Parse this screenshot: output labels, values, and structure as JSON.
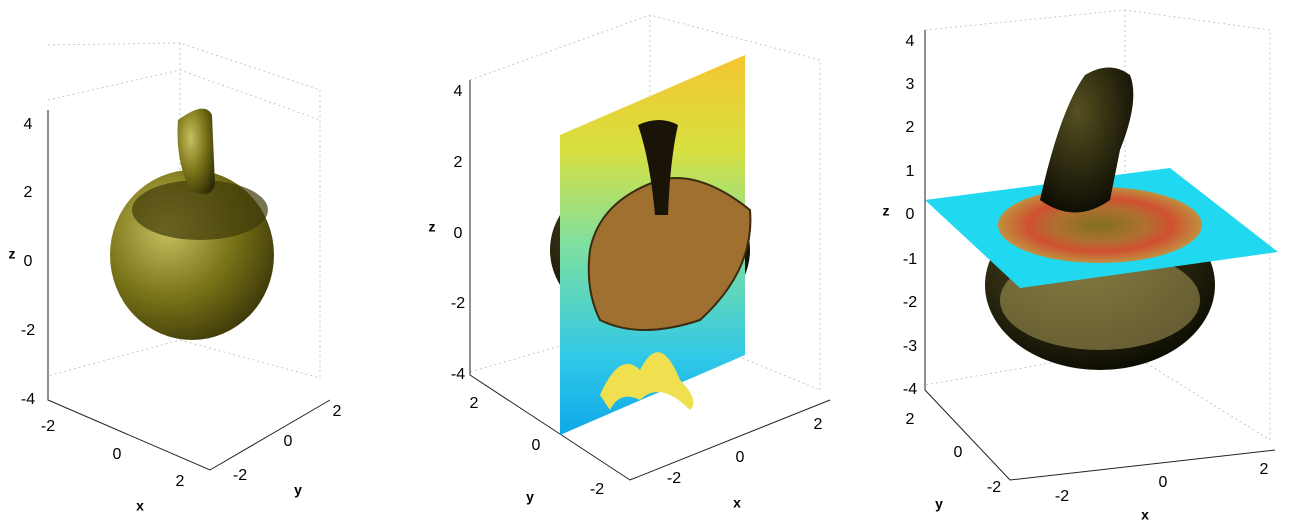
{
  "panels": [
    {
      "zticks": [
        4,
        2,
        0,
        -2,
        -4
      ],
      "xticks": [
        -2,
        0,
        2
      ],
      "yticks": [
        2,
        0,
        -2
      ],
      "zlabel": "z",
      "xlabel": "x",
      "ylabel": "y"
    },
    {
      "zticks": [
        4,
        2,
        0,
        -2,
        -4
      ],
      "yticks": [
        2,
        0,
        -2
      ],
      "xticks": [
        -2,
        0,
        2
      ],
      "zlabel": "z",
      "ylabel": "y",
      "xlabel": "x"
    },
    {
      "zticks": [
        4,
        3,
        2,
        1,
        0,
        -1,
        -2,
        -3,
        -4
      ],
      "yticks": [
        2,
        0,
        -2
      ],
      "xticks": [
        -2,
        0,
        2
      ],
      "zlabel": "z",
      "ylabel": "y",
      "xlabel": "x"
    }
  ]
}
